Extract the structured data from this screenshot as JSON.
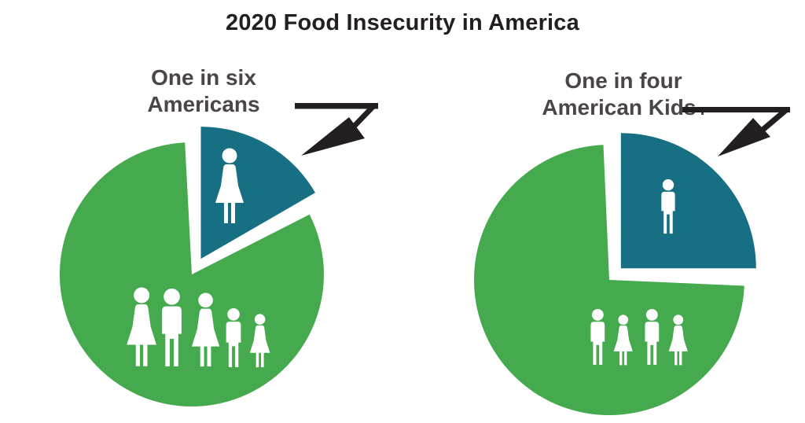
{
  "title": "2020 Food Insecurity in America",
  "colors": {
    "pie_green": "#45a94d",
    "slice_teal": "#166f82",
    "arrow_black": "#231f20",
    "title_black": "#231f20",
    "label_gray": "#4b4547",
    "figure_white": "#ffffff",
    "background": "#ffffff"
  },
  "chart_data": [
    {
      "type": "pie",
      "label_lines": [
        "One in six",
        "Americans"
      ],
      "values": [
        1,
        5
      ],
      "fractions": [
        0.1667,
        0.8333
      ],
      "colors": {
        "slice": "#166f82",
        "rest": "#45a94d"
      },
      "slice_icon": "woman-icon",
      "rest_icons": [
        "woman-icon",
        "man-icon",
        "woman-icon",
        "boy-icon",
        "girl-icon"
      ],
      "exploded_slice_index": 0,
      "legend_position": "none"
    },
    {
      "type": "pie",
      "label_lines": [
        "One in four",
        "American Kids"
      ],
      "label_suffix": ".",
      "values": [
        1,
        3
      ],
      "fractions": [
        0.25,
        0.75
      ],
      "colors": {
        "slice": "#166f82",
        "rest": "#45a94d"
      },
      "slice_icon": "boy-icon",
      "rest_icons": [
        "boy-icon",
        "girl-icon",
        "boy-icon",
        "girl-icon"
      ],
      "exploded_slice_index": 0,
      "legend_position": "none"
    }
  ]
}
